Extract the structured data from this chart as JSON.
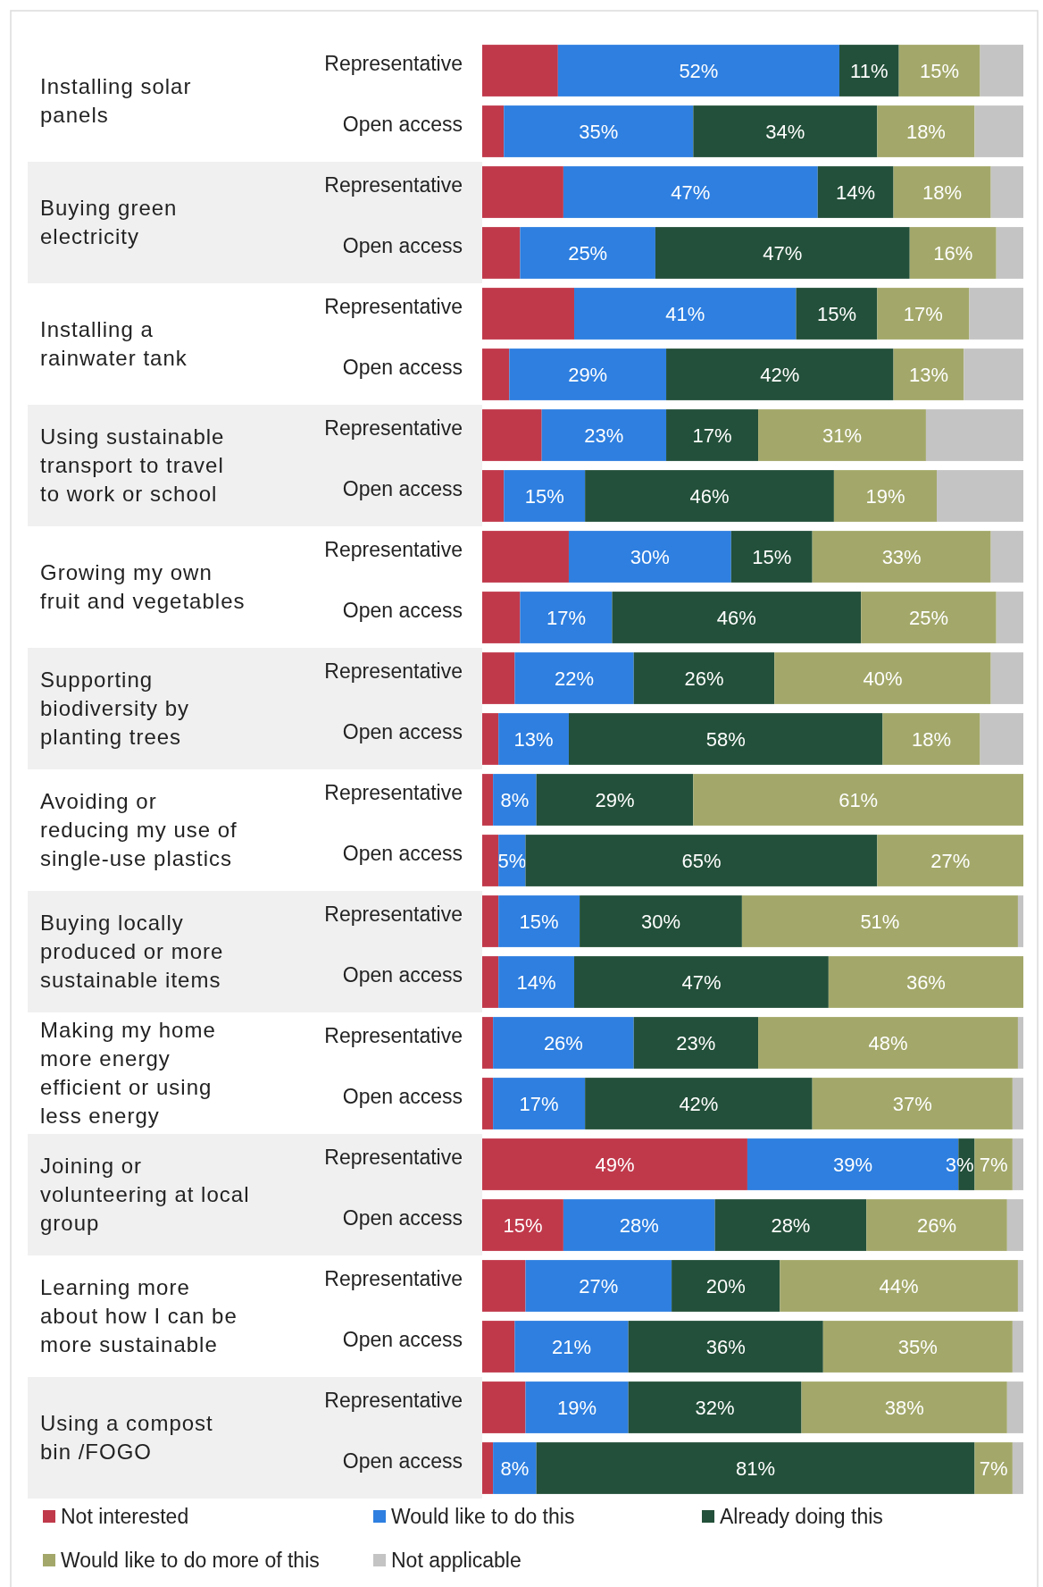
{
  "chart_data": {
    "type": "bar",
    "orientation": "horizontal",
    "stacked": true,
    "xlim": [
      0,
      100
    ],
    "tick_labels": "y",
    "legend": "bottom",
    "categories": [
      "Representative",
      "Open access",
      "Representative",
      "Open access",
      "Representative",
      "Open access",
      "Representative",
      "Open access",
      "Representative",
      "Open access",
      "Representative",
      "Open access",
      "Representative",
      "Open access",
      "Representative",
      "Open access",
      "Representative",
      "Open access",
      "Representative",
      "Open access",
      "Representative",
      "Open access",
      "Representative",
      "Open access"
    ],
    "annotations": [
      "Installing solar panels",
      "Buying green electricity",
      "Installing a rainwater tank",
      "Using sustainable transport to travel to work or school",
      "Growing my own fruit and vegetables",
      "Supporting biodiversity by planting trees",
      "Avoiding or reducing my use of single-use plastics",
      "Buying locally produced or more sustainable items",
      "Making my home more energy efficient or using less energy",
      "Joining or volunteering at local group",
      "Learning more about how I can be more sustainable",
      "Using a compost bin /FOGO"
    ],
    "series": [
      {
        "name": "Not interested",
        "color": "#c0394b",
        "values": [
          14,
          4,
          15,
          7,
          17,
          5,
          11,
          4,
          16,
          7,
          6,
          3,
          2,
          3,
          3,
          3,
          2,
          2,
          49,
          15,
          8,
          6,
          8,
          2
        ],
        "value_labels": [
          null,
          null,
          null,
          null,
          null,
          null,
          null,
          null,
          null,
          null,
          null,
          null,
          null,
          null,
          null,
          null,
          null,
          null,
          "49%",
          "15%",
          null,
          null,
          null,
          null
        ]
      },
      {
        "name": "Would like to do this",
        "color": "#2e7fe0",
        "values": [
          52,
          35,
          47,
          25,
          41,
          29,
          23,
          15,
          30,
          17,
          22,
          13,
          8,
          5,
          15,
          14,
          26,
          17,
          39,
          28,
          27,
          21,
          19,
          8
        ],
        "value_labels": [
          "52%",
          "35%",
          "47%",
          "25%",
          "41%",
          "29%",
          "23%",
          "15%",
          "30%",
          "17%",
          "22%",
          "13%",
          "8%",
          "5%",
          "15%",
          "14%",
          "26%",
          "17%",
          "39%",
          "28%",
          "27%",
          "21%",
          "19%",
          "8%"
        ]
      },
      {
        "name": "Already doing this",
        "color": "#23503a",
        "values": [
          11,
          34,
          14,
          47,
          15,
          42,
          17,
          46,
          15,
          46,
          26,
          58,
          29,
          65,
          30,
          47,
          23,
          42,
          3,
          28,
          20,
          36,
          32,
          81
        ],
        "value_labels": [
          "11%",
          "34%",
          "14%",
          "47%",
          "15%",
          "42%",
          "17%",
          "46%",
          "15%",
          "46%",
          "26%",
          "58%",
          "29%",
          "65%",
          "30%",
          "47%",
          "23%",
          "42%",
          "3%",
          "28%",
          "20%",
          "36%",
          "32%",
          "81%"
        ]
      },
      {
        "name": "Would like to do more of this",
        "color": "#a3a86a",
        "values": [
          15,
          18,
          18,
          16,
          17,
          13,
          31,
          19,
          33,
          25,
          40,
          18,
          61,
          27,
          51,
          36,
          48,
          37,
          7,
          26,
          44,
          35,
          38,
          7
        ],
        "value_labels": [
          "15%",
          "18%",
          "18%",
          "16%",
          "17%",
          "13%",
          "31%",
          "19%",
          "33%",
          "25%",
          "40%",
          "18%",
          "61%",
          "27%",
          "51%",
          "36%",
          "48%",
          "37%",
          "7%",
          "26%",
          "44%",
          "35%",
          "38%",
          "7%"
        ]
      },
      {
        "name": "Not applicable",
        "color": "#c4c4c4",
        "values": [
          8,
          9,
          6,
          5,
          10,
          11,
          18,
          16,
          6,
          5,
          6,
          8,
          0,
          0,
          1,
          0,
          1,
          2,
          2,
          3,
          1,
          2,
          3,
          2
        ],
        "value_labels": [
          null,
          null,
          null,
          null,
          null,
          null,
          null,
          null,
          null,
          null,
          null,
          null,
          null,
          null,
          null,
          null,
          null,
          null,
          null,
          null,
          null,
          null,
          null,
          null
        ]
      }
    ]
  }
}
